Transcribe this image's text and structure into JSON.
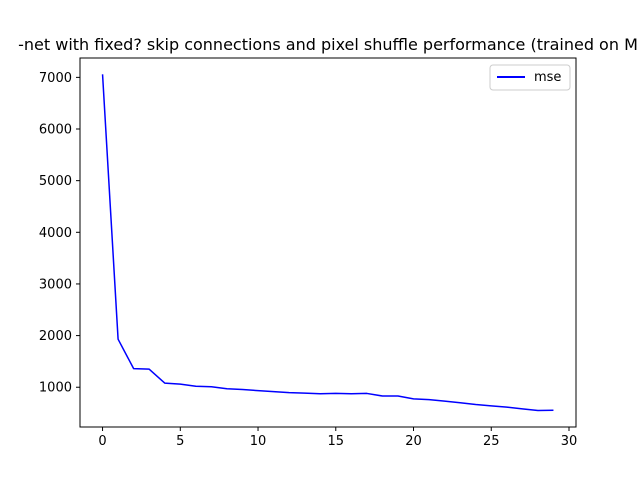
{
  "chart_data": {
    "type": "line",
    "title": "-net with fixed? skip connections and pixel shuffle performance (trained on M",
    "xlabel": "",
    "ylabel": "",
    "xlim": [
      -1.45,
      30.45
    ],
    "ylim": [
      230,
      7375
    ],
    "x_ticks": [
      0,
      5,
      10,
      15,
      20,
      25,
      30
    ],
    "x_tick_labels": [
      "0",
      "5",
      "10",
      "15",
      "20",
      "25",
      "30"
    ],
    "y_ticks": [
      1000,
      2000,
      3000,
      4000,
      5000,
      6000,
      7000
    ],
    "y_tick_labels": [
      "1000",
      "2000",
      "3000",
      "4000",
      "5000",
      "6000",
      "7000"
    ],
    "grid": false,
    "legend_position": "top-right",
    "series": [
      {
        "name": "mse",
        "color": "#0000ff",
        "x": [
          0,
          1,
          2,
          3,
          4,
          5,
          6,
          7,
          8,
          9,
          10,
          11,
          12,
          13,
          14,
          15,
          16,
          17,
          18,
          19,
          20,
          21,
          22,
          23,
          24,
          25,
          26,
          27,
          28,
          29
        ],
        "y": [
          7060,
          1930,
          1360,
          1350,
          1080,
          1060,
          1020,
          1010,
          970,
          955,
          935,
          915,
          895,
          885,
          875,
          880,
          875,
          880,
          830,
          830,
          775,
          760,
          730,
          700,
          665,
          640,
          615,
          580,
          550,
          555
        ]
      }
    ]
  }
}
